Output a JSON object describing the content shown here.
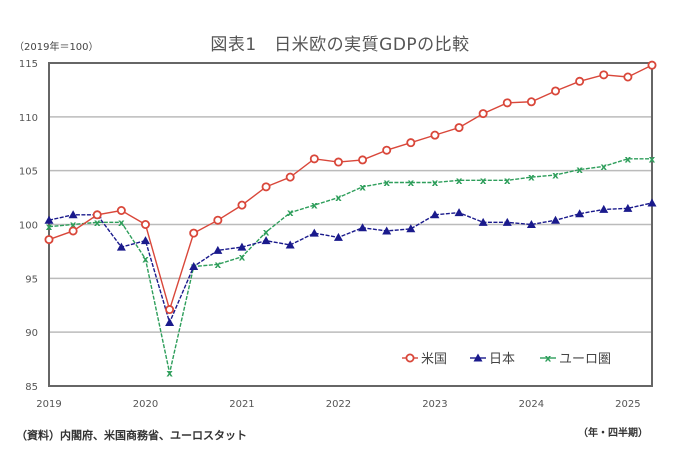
{
  "header": {
    "title": "図表1　日米欧の実質GDPの比較",
    "unit_label": "（2019年＝100）"
  },
  "footer": {
    "source": "（資料）内閣府、米国商務省、ユーロスタット",
    "period_label": "（年・四半期）"
  },
  "chart_data": {
    "type": "line",
    "title": "図表1　日米欧の実質GDPの比較",
    "xlabel": "（年・四半期）",
    "ylabel": "（2019年＝100）",
    "ylim": [
      85,
      115
    ],
    "yticks": [
      85,
      90,
      95,
      100,
      105,
      110,
      115
    ],
    "ytick_labels": [
      "85",
      "90",
      "95",
      "100",
      "105",
      "110",
      "115"
    ],
    "xtick_labels": [
      "2019",
      "2020",
      "2021",
      "2022",
      "2023",
      "2024",
      "2025"
    ],
    "grid": true,
    "legend_position": "bottom-right",
    "x": [
      "2019Q1",
      "2019Q2",
      "2019Q3",
      "2019Q4",
      "2020Q1",
      "2020Q2",
      "2020Q3",
      "2020Q4",
      "2021Q1",
      "2021Q2",
      "2021Q3",
      "2021Q4",
      "2022Q1",
      "2022Q2",
      "2022Q3",
      "2022Q4",
      "2023Q1",
      "2023Q2",
      "2023Q3",
      "2023Q4",
      "2024Q1",
      "2024Q2",
      "2024Q3",
      "2024Q4",
      "2025Q1",
      "2025Q2"
    ],
    "series": [
      {
        "name": "米国",
        "color": "#d9473a",
        "marker": "circle",
        "values": [
          98.6,
          99.4,
          100.9,
          101.3,
          100.0,
          92.1,
          99.2,
          100.4,
          101.8,
          103.5,
          104.4,
          106.1,
          105.8,
          106.0,
          106.9,
          107.6,
          108.3,
          109.0,
          110.3,
          111.3,
          111.4,
          112.4,
          113.3,
          113.9,
          113.7,
          114.8
        ]
      },
      {
        "name": "日本",
        "color": "#1a1a8c",
        "marker": "triangle",
        "values": [
          100.4,
          100.9,
          100.9,
          97.9,
          98.5,
          90.9,
          96.1,
          97.6,
          97.9,
          98.5,
          98.1,
          99.2,
          98.8,
          99.7,
          99.4,
          99.6,
          100.9,
          101.1,
          100.2,
          100.2,
          100.0,
          100.4,
          101.0,
          101.4,
          101.5,
          102.0
        ]
      },
      {
        "name": "ユーロ圏",
        "color": "#2e9e5b",
        "marker": "x",
        "values": [
          99.8,
          100.0,
          100.2,
          100.2,
          96.8,
          86.2,
          96.1,
          96.3,
          97.0,
          99.3,
          101.1,
          101.8,
          102.5,
          103.5,
          103.9,
          103.9,
          103.9,
          104.1,
          104.1,
          104.1,
          104.4,
          104.6,
          105.1,
          105.4,
          106.1,
          106.1
        ]
      }
    ]
  }
}
